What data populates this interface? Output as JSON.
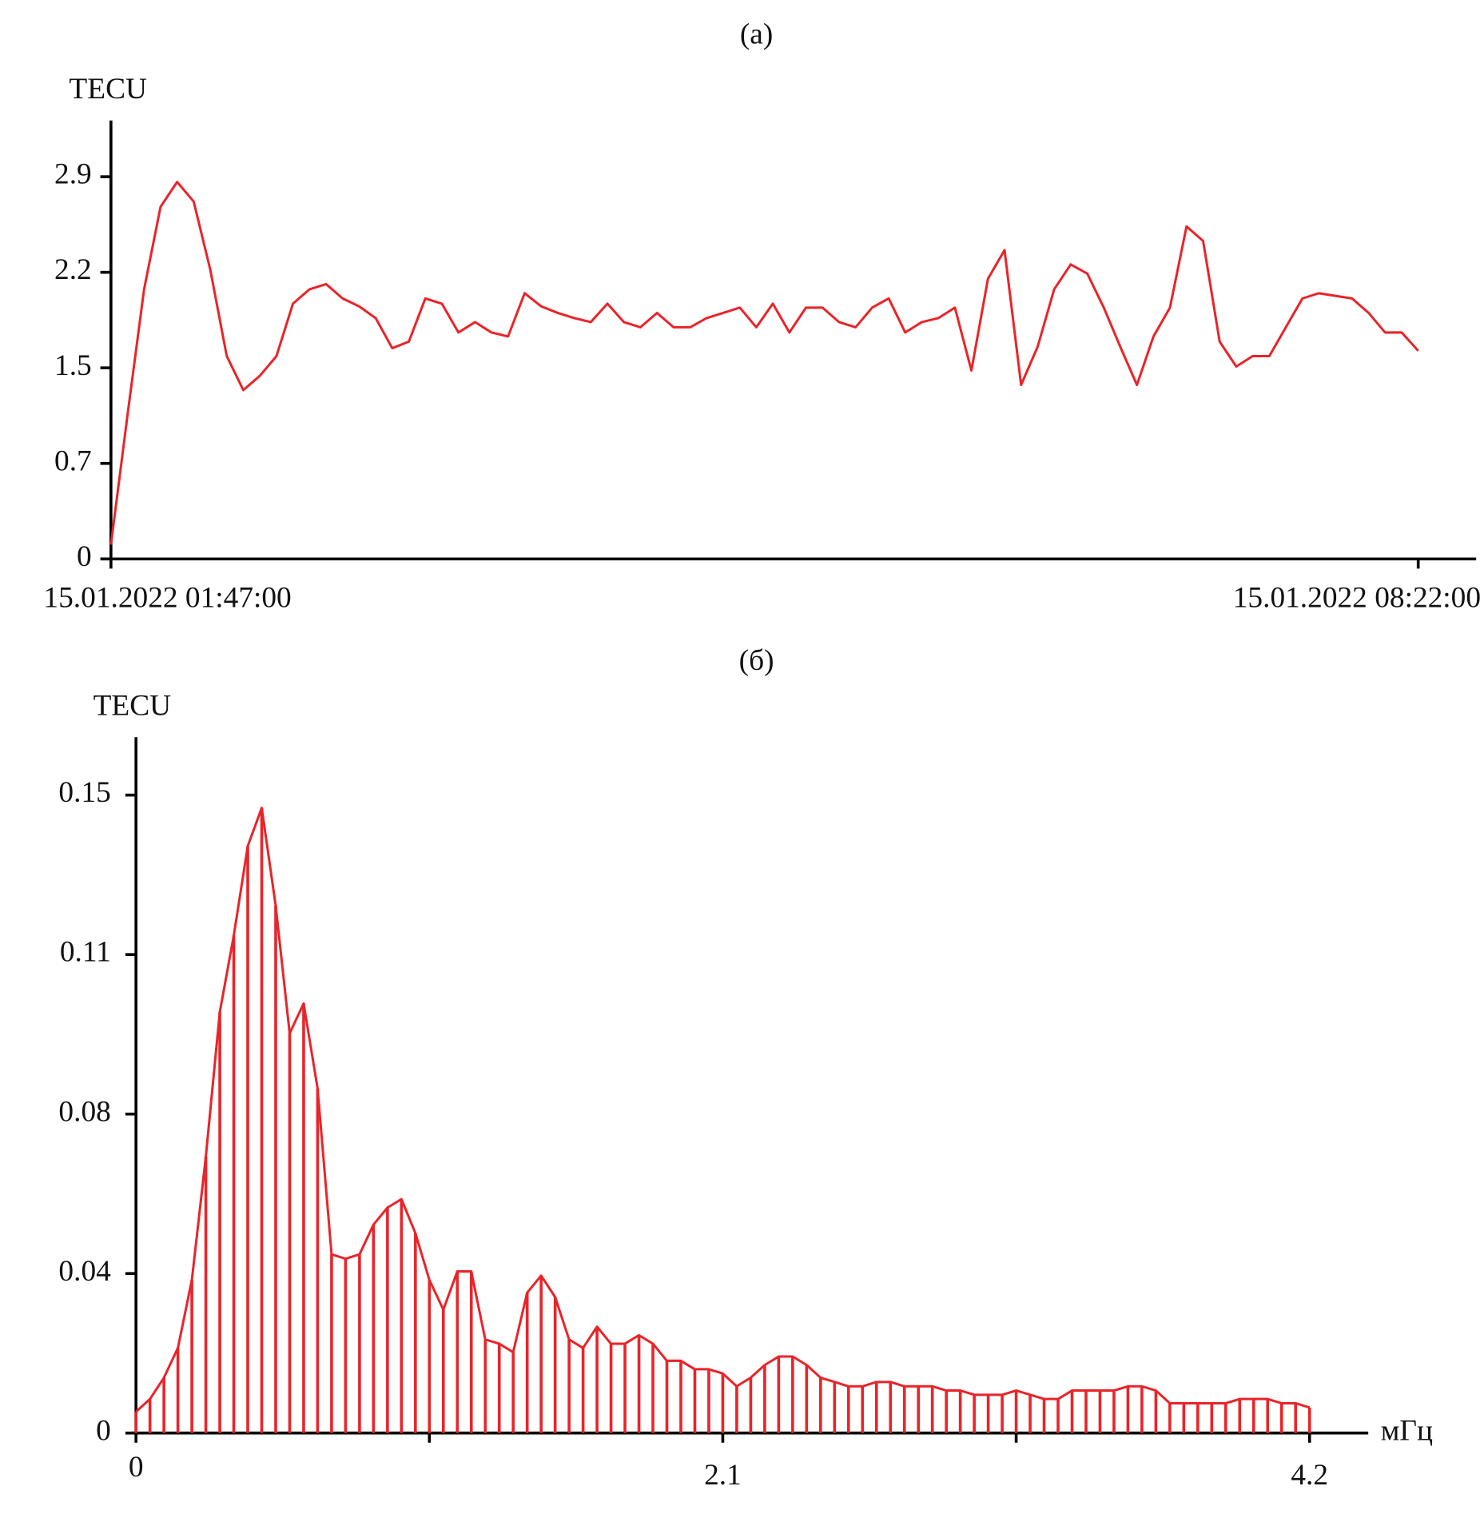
{
  "chart_data": [
    {
      "type": "line",
      "title": "(a)",
      "y_label": "TECU",
      "color": "#e8252a",
      "x": [
        "15.01.2022 01:47:00",
        "15.01.2022 01:52:00",
        "15.01.2022 01:57:00",
        "15.01.2022 02:02:00",
        "15.01.2022 02:07:00",
        "15.01.2022 02:12:00",
        "15.01.2022 02:17:00",
        "15.01.2022 02:22:00",
        "15.01.2022 02:27:00",
        "15.01.2022 02:32:00",
        "15.01.2022 02:37:00",
        "15.01.2022 02:42:00",
        "15.01.2022 02:47:00",
        "15.01.2022 02:52:00",
        "15.01.2022 02:57:00",
        "15.01.2022 03:02:00",
        "15.01.2022 03:07:00",
        "15.01.2022 03:12:00",
        "15.01.2022 03:17:00",
        "15.01.2022 03:22:00",
        "15.01.2022 03:27:00",
        "15.01.2022 03:32:00",
        "15.01.2022 03:37:00",
        "15.01.2022 03:42:00",
        "15.01.2022 03:47:00",
        "15.01.2022 03:52:00",
        "15.01.2022 03:57:00",
        "15.01.2022 04:02:00",
        "15.01.2022 04:07:00",
        "15.01.2022 04:12:00",
        "15.01.2022 04:17:00",
        "15.01.2022 04:22:00",
        "15.01.2022 04:27:00",
        "15.01.2022 04:32:00",
        "15.01.2022 04:37:00",
        "15.01.2022 04:42:00",
        "15.01.2022 04:47:00",
        "15.01.2022 04:52:00",
        "15.01.2022 04:57:00",
        "15.01.2022 05:02:00",
        "15.01.2022 05:07:00",
        "15.01.2022 05:12:00",
        "15.01.2022 05:17:00",
        "15.01.2022 05:22:00",
        "15.01.2022 05:27:00",
        "15.01.2022 05:32:00",
        "15.01.2022 05:37:00",
        "15.01.2022 05:42:00",
        "15.01.2022 05:47:00",
        "15.01.2022 05:52:00",
        "15.01.2022 05:57:00",
        "15.01.2022 06:02:00",
        "15.01.2022 06:07:00",
        "15.01.2022 06:12:00",
        "15.01.2022 06:17:00",
        "15.01.2022 06:22:00",
        "15.01.2022 06:27:00",
        "15.01.2022 06:32:00",
        "15.01.2022 06:37:00",
        "15.01.2022 06:42:00",
        "15.01.2022 06:47:00",
        "15.01.2022 06:52:00",
        "15.01.2022 06:57:00",
        "15.01.2022 07:02:00",
        "15.01.2022 07:07:00",
        "15.01.2022 07:12:00",
        "15.01.2022 07:17:00",
        "15.01.2022 07:22:00",
        "15.01.2022 07:27:00",
        "15.01.2022 07:32:00",
        "15.01.2022 07:37:00",
        "15.01.2022 07:42:00",
        "15.01.2022 07:47:00",
        "15.01.2022 07:52:00",
        "15.01.2022 07:57:00",
        "15.01.2022 08:02:00",
        "15.01.2022 08:07:00",
        "15.01.2022 08:12:00",
        "15.01.2022 08:17:00",
        "15.01.2022 08:22:00"
      ],
      "values": [
        0.11,
        1.1,
        2.06,
        2.69,
        2.88,
        2.73,
        2.21,
        1.55,
        1.29,
        1.4,
        1.55,
        1.95,
        2.06,
        2.1,
        1.99,
        1.93,
        1.84,
        1.61,
        1.66,
        1.99,
        1.95,
        1.73,
        1.81,
        1.73,
        1.7,
        2.03,
        1.93,
        1.88,
        1.84,
        1.81,
        1.95,
        1.81,
        1.77,
        1.88,
        1.77,
        1.77,
        1.84,
        1.88,
        1.92,
        1.77,
        1.95,
        1.73,
        1.92,
        1.92,
        1.81,
        1.77,
        1.92,
        1.99,
        1.73,
        1.81,
        1.84,
        1.92,
        1.44,
        2.14,
        2.36,
        1.33,
        1.62,
        2.06,
        2.25,
        2.18,
        1.92,
        1.62,
        1.33,
        1.7,
        1.92,
        2.54,
        2.43,
        1.66,
        1.47,
        1.55,
        1.55,
        1.77,
        1.99,
        2.03,
        2.01,
        1.99,
        1.88,
        1.73,
        1.73,
        1.59
      ],
      "xlim": [
        "15.01.2022 01:47:00",
        "15.01.2022 08:39:30"
      ],
      "xticks": [
        "15.01.2022 01:47:00",
        "15.01.2022 08:22:00"
      ],
      "ylim": [
        0,
        3.35
      ],
      "yticks": [
        0,
        {
          "value": 0.73,
          "label": "0.7"
        },
        {
          "value": 1.46,
          "label": "1.5"
        },
        {
          "value": 2.19,
          "label": "2.2"
        },
        {
          "value": 2.92,
          "label": "2.9"
        }
      ]
    },
    {
      "type": "bar",
      "title": "(б)",
      "y_label": "TECU",
      "x_label": "мГц",
      "color": "#e8252a",
      "x": [
        0,
        0.05,
        0.1,
        0.15,
        0.2,
        0.25,
        0.3,
        0.35,
        0.4,
        0.45,
        0.5,
        0.55,
        0.6,
        0.65,
        0.7,
        0.75,
        0.8,
        0.85,
        0.9,
        0.95,
        1,
        1.05,
        1.1,
        1.15,
        1.2,
        1.25,
        1.3,
        1.35,
        1.4,
        1.45,
        1.5,
        1.55,
        1.6,
        1.65,
        1.7,
        1.75,
        1.8,
        1.85,
        1.9,
        1.95,
        2,
        2.05,
        2.1,
        2.15,
        2.2,
        2.25,
        2.3,
        2.35,
        2.4,
        2.45,
        2.5,
        2.55,
        2.6,
        2.65,
        2.7,
        2.75,
        2.8,
        2.85,
        2.9,
        2.95,
        3,
        3.05,
        3.1,
        3.15,
        3.2,
        3.25,
        3.3,
        3.35,
        3.4,
        3.45,
        3.5,
        3.55,
        3.6,
        3.65,
        3.7,
        3.75,
        3.8,
        3.85,
        3.9,
        3.95,
        4,
        4.05,
        4.1,
        4.15,
        4.2
      ],
      "values": [
        0.005,
        0.008,
        0.013,
        0.02,
        0.036,
        0.065,
        0.099,
        0.117,
        0.138,
        0.147,
        0.124,
        0.094,
        0.101,
        0.081,
        0.042,
        0.041,
        0.042,
        0.049,
        0.053,
        0.055,
        0.047,
        0.036,
        0.029,
        0.038,
        0.038,
        0.022,
        0.021,
        0.019,
        0.033,
        0.037,
        0.032,
        0.022,
        0.02,
        0.025,
        0.021,
        0.021,
        0.023,
        0.021,
        0.017,
        0.017,
        0.015,
        0.015,
        0.014,
        0.011,
        0.013,
        0.016,
        0.018,
        0.018,
        0.016,
        0.013,
        0.012,
        0.011,
        0.011,
        0.012,
        0.012,
        0.011,
        0.011,
        0.011,
        0.01,
        0.01,
        0.009,
        0.009,
        0.009,
        0.01,
        0.009,
        0.008,
        0.008,
        0.01,
        0.01,
        0.01,
        0.01,
        0.011,
        0.011,
        0.01,
        0.007,
        0.007,
        0.007,
        0.007,
        0.007,
        0.008,
        0.008,
        0.008,
        0.007,
        0.007,
        0.006
      ],
      "xlim": [
        0,
        4.41
      ],
      "xticks": [
        0,
        2.1,
        4.2
      ],
      "xminorticks": [
        1.05,
        3.15
      ],
      "ylim": [
        0,
        0.1636
      ],
      "yticks": [
        0,
        {
          "value": 0.0375,
          "label": "0.04"
        },
        {
          "value": 0.075,
          "label": "0.08"
        },
        {
          "value": 0.1125,
          "label": "0.11"
        },
        {
          "value": 0.15,
          "label": "0.15"
        }
      ]
    }
  ]
}
